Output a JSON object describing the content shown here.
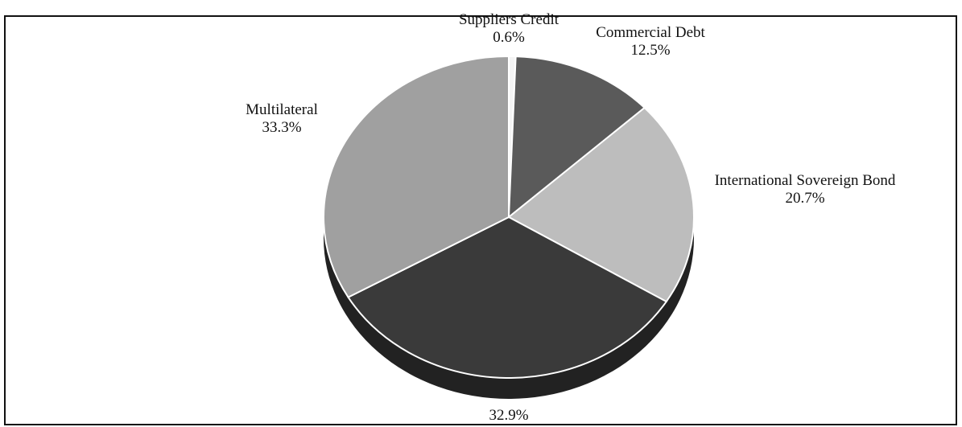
{
  "chart_data": {
    "type": "pie",
    "categories": [
      "Suppliers Credit",
      "Commercial Debt",
      "International Sovereign Bond",
      null,
      "Multilateral"
    ],
    "values": [
      0.6,
      12.5,
      20.7,
      32.9,
      33.3
    ],
    "value_labels": [
      "0.6%",
      "12.5%",
      "20.7%",
      "32.9%",
      "33.3%"
    ],
    "colors": [
      "#f4f4f4",
      "#5a5a5a",
      "#bdbdbd",
      "#3a3a3a",
      "#a0a0a0"
    ]
  }
}
